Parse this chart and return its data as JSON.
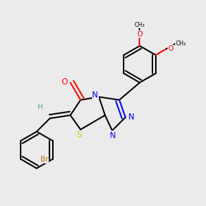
{
  "background_color": "#ebebeb",
  "figsize": [
    3.0,
    3.0
  ],
  "dpi": 100,
  "bond_color": "#000000",
  "atom_colors": {
    "N": "#0000ff",
    "O": "#ff0000",
    "S": "#cccc00",
    "Br": "#c07000",
    "H": "#4a9a9a",
    "C": "#000000"
  },
  "font_size": 7.5,
  "bond_width": 1.5,
  "bg": "#ebebeb"
}
